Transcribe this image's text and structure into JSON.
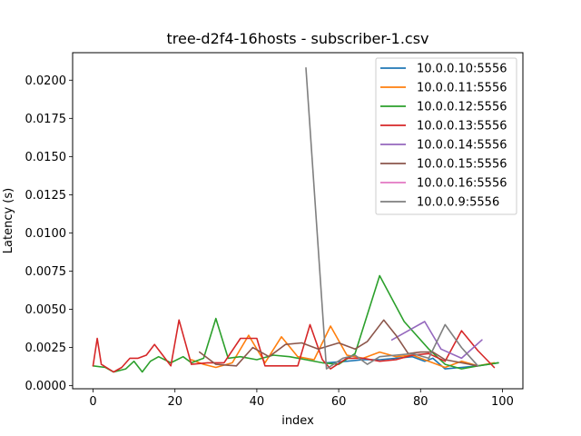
{
  "chart_data": {
    "type": "line",
    "title": "tree-d2f4-16hosts - subscriber-1.csv",
    "xlabel": "index",
    "ylabel": "Latency (s)",
    "xlim": [
      -5,
      105
    ],
    "ylim": [
      -0.0002,
      0.0218
    ],
    "xticks": [
      "0",
      "20",
      "40",
      "60",
      "80",
      "100"
    ],
    "xtick_values": [
      0,
      20,
      40,
      60,
      80,
      100
    ],
    "yticks": [
      "0.0000",
      "0.0025",
      "0.0050",
      "0.0075",
      "0.0100",
      "0.0125",
      "0.0150",
      "0.0175",
      "0.0200"
    ],
    "ytick_values": [
      0,
      0.0025,
      0.005,
      0.0075,
      0.01,
      0.0125,
      0.015,
      0.0175,
      0.02
    ],
    "legend_position": "top-right",
    "grid": false,
    "series": [
      {
        "name": "10.0.0.10:5556",
        "color": "#1f77b4",
        "x": [
          57,
          62,
          66,
          70,
          74,
          78,
          81,
          83,
          86,
          90,
          94,
          99
        ],
        "y": [
          0.0015,
          0.0016,
          0.0017,
          0.0017,
          0.0018,
          0.0019,
          0.0016,
          0.0018,
          0.0011,
          0.0012,
          0.0013,
          0.0015
        ]
      },
      {
        "name": "10.0.0.11:5556",
        "color": "#ff7f0e",
        "x": [
          24,
          27,
          30,
          34,
          38,
          42,
          46,
          50,
          54,
          58,
          62,
          66,
          70,
          74,
          78,
          82,
          86,
          90,
          94,
          98
        ],
        "y": [
          0.0017,
          0.0014,
          0.0012,
          0.0015,
          0.0033,
          0.0015,
          0.0032,
          0.0019,
          0.0017,
          0.0039,
          0.002,
          0.0018,
          0.0022,
          0.0019,
          0.002,
          0.0016,
          0.0012,
          0.0016,
          0.0013,
          0.0015
        ]
      },
      {
        "name": "10.0.0.12:5556",
        "color": "#2ca02c",
        "x": [
          0,
          3,
          5,
          8,
          10,
          12,
          14,
          16,
          19,
          22,
          24,
          27,
          30,
          33,
          36,
          40,
          44,
          48,
          52,
          56,
          60,
          64,
          70,
          76,
          82,
          86,
          90,
          94,
          99
        ],
        "y": [
          0.0013,
          0.0012,
          0.0009,
          0.0011,
          0.0016,
          0.0009,
          0.0016,
          0.0019,
          0.0015,
          0.0019,
          0.0015,
          0.0018,
          0.0044,
          0.0018,
          0.0019,
          0.0017,
          0.002,
          0.0019,
          0.0017,
          0.0015,
          0.0014,
          0.0021,
          0.0072,
          0.0042,
          0.0024,
          0.0014,
          0.0011,
          0.0013,
          0.0015
        ]
      },
      {
        "name": "10.0.0.13:5556",
        "color": "#d62728",
        "x": [
          0,
          1,
          2,
          5,
          7,
          9,
          11,
          13,
          15,
          17,
          19,
          21,
          24,
          28,
          32,
          36,
          38,
          40,
          42,
          46,
          50,
          53,
          56,
          58,
          62,
          66,
          70,
          74,
          78,
          82,
          86,
          90,
          94,
          98
        ],
        "y": [
          0.0013,
          0.0031,
          0.0014,
          0.0009,
          0.0012,
          0.0018,
          0.0018,
          0.002,
          0.0027,
          0.002,
          0.0013,
          0.0043,
          0.0014,
          0.0015,
          0.0015,
          0.0031,
          0.0031,
          0.0031,
          0.0013,
          0.0013,
          0.0013,
          0.004,
          0.0017,
          0.0011,
          0.0018,
          0.0018,
          0.0016,
          0.0017,
          0.002,
          0.0021,
          0.0016,
          0.0036,
          0.0023,
          0.0012
        ]
      },
      {
        "name": "10.0.0.14:5556",
        "color": "#9467bd",
        "x": [
          73,
          77,
          81,
          85,
          90,
          95
        ],
        "y": [
          0.003,
          0.0036,
          0.0042,
          0.0024,
          0.0018,
          0.003
        ]
      },
      {
        "name": "10.0.0.15:5556",
        "color": "#8c564b",
        "x": [
          26,
          30,
          35,
          39,
          43,
          47,
          51,
          55,
          60,
          64,
          67,
          71,
          74,
          77,
          80,
          83,
          86,
          90,
          94
        ],
        "y": [
          0.0022,
          0.0014,
          0.0013,
          0.0025,
          0.0019,
          0.0027,
          0.0028,
          0.0024,
          0.0028,
          0.0024,
          0.0029,
          0.0043,
          0.0033,
          0.0021,
          0.0022,
          0.0022,
          0.0017,
          0.0015,
          0.0013
        ]
      },
      {
        "name": "10.0.0.16:5556",
        "color": "#e377c2",
        "x": [],
        "y": []
      },
      {
        "name": "10.0.0.9:5556",
        "color": "#7f7f7f",
        "x": [
          52,
          57,
          61,
          64,
          67,
          70,
          74,
          78,
          82,
          86,
          90,
          94
        ],
        "y": [
          0.0208,
          0.0011,
          0.0018,
          0.002,
          0.0014,
          0.0019,
          0.002,
          0.0021,
          0.0018,
          0.004,
          0.0025,
          0.0013
        ]
      }
    ]
  }
}
